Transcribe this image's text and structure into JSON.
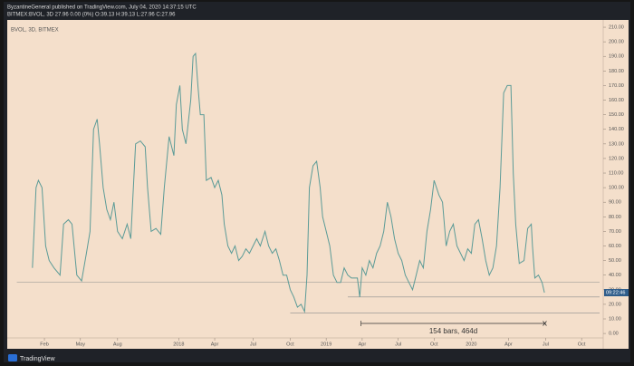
{
  "header": {
    "line1": "ByzantineGeneral published on TradingView.com, July 04, 2020 14:37:15 UTC",
    "line2": "BITMEX:BVOL, 3D  27.96  0.00 (0%)  O:39.13  H:39.13  L:27.96  C:27.96"
  },
  "chart_data": {
    "type": "line",
    "legend": "BVOL, 3D, BITMEX",
    "series": [
      {
        "name": "BVOL",
        "color": "#5b9b97",
        "x": [
          21,
          24,
          26,
          29,
          32,
          35,
          39,
          44,
          47,
          51,
          54,
          58,
          62,
          66,
          69,
          72,
          75,
          77,
          80,
          83,
          86,
          89,
          92,
          96,
          100,
          103,
          107,
          111,
          115,
          117,
          120,
          124,
          128,
          131,
          135,
          139,
          141,
          144,
          146,
          149,
          153,
          155,
          157,
          159,
          161,
          164,
          166,
          170,
          173,
          176,
          179,
          181,
          184,
          187,
          190,
          193,
          196,
          199,
          202,
          205,
          208,
          211,
          215,
          218,
          221,
          224,
          227,
          230,
          233,
          236,
          239,
          242,
          245,
          248,
          250,
          252,
          255,
          258,
          261,
          263,
          266,
          269,
          272,
          275,
          278,
          281,
          284,
          287,
          292,
          294,
          296,
          299,
          302,
          305,
          308,
          311,
          314,
          317,
          320,
          323,
          326,
          329,
          332,
          335,
          338,
          341,
          344,
          347,
          350,
          353,
          356,
          360,
          363,
          366,
          369,
          372,
          375,
          378,
          381,
          384,
          387,
          390,
          393,
          396,
          399,
          402,
          405,
          408,
          411,
          414,
          417,
          420,
          422,
          424,
          427,
          431,
          434,
          437,
          438,
          440,
          443,
          446,
          448
        ],
        "values": [
          45,
          100,
          105,
          100,
          60,
          50,
          45,
          40,
          75,
          78,
          75,
          40,
          36,
          55,
          70,
          140,
          147,
          130,
          100,
          85,
          78,
          90,
          70,
          65,
          75,
          65,
          130,
          132,
          128,
          100,
          70,
          72,
          68,
          100,
          135,
          122,
          157,
          170,
          140,
          130,
          160,
          190,
          192,
          170,
          150,
          150,
          105,
          107,
          100,
          105,
          95,
          75,
          60,
          55,
          60,
          50,
          53,
          58,
          55,
          60,
          65,
          60,
          70,
          60,
          55,
          58,
          50,
          40,
          40,
          30,
          25,
          18,
          20,
          15,
          40,
          100,
          115,
          118,
          100,
          80,
          70,
          60,
          40,
          35,
          35,
          45,
          40,
          38,
          38,
          25,
          45,
          40,
          50,
          45,
          55,
          60,
          70,
          90,
          80,
          65,
          55,
          50,
          40,
          35,
          30,
          40,
          50,
          45,
          70,
          85,
          105,
          95,
          90,
          60,
          70,
          75,
          60,
          55,
          50,
          58,
          55,
          75,
          78,
          65,
          50,
          40,
          45,
          60,
          100,
          165,
          170,
          170,
          110,
          75,
          48,
          50,
          72,
          75,
          60,
          38,
          40,
          35,
          28
        ]
      }
    ],
    "levels": [
      {
        "value": 35,
        "from": 8
      },
      {
        "value": 25,
        "from": 284
      },
      {
        "value": 14,
        "from": 236
      }
    ],
    "range_marker": {
      "from": 295,
      "to": 449,
      "label": "154 bars, 464d"
    },
    "last_label": "09:22:46",
    "xlim": [
      0,
      497
    ],
    "ylim": [
      -10.5,
      215
    ],
    "xticks": [
      {
        "value": 31,
        "label": "Feb"
      },
      {
        "value": 61,
        "label": "May"
      },
      {
        "value": 92,
        "label": "Aug"
      },
      {
        "value": 143,
        "label": "2018"
      },
      {
        "value": 173,
        "label": "Apr"
      },
      {
        "value": 205,
        "label": "Jul"
      },
      {
        "value": 236,
        "label": "Oct"
      },
      {
        "value": 266,
        "label": "2019"
      },
      {
        "value": 296,
        "label": "Apr"
      },
      {
        "value": 326,
        "label": "Jul"
      },
      {
        "value": 356,
        "label": "Oct"
      },
      {
        "value": 387,
        "label": "2020"
      },
      {
        "value": 418,
        "label": "Apr"
      },
      {
        "value": 449,
        "label": "Jul"
      },
      {
        "value": 479,
        "label": "Oct"
      }
    ],
    "yticks": [
      {
        "value": 0,
        "label": "0.00"
      },
      {
        "value": 10,
        "label": "10.00"
      },
      {
        "value": 20,
        "label": "20.00"
      },
      {
        "value": 30,
        "label": "30.00"
      },
      {
        "value": 40,
        "label": "40.00"
      },
      {
        "value": 50,
        "label": "50.00"
      },
      {
        "value": 60,
        "label": "60.00"
      },
      {
        "value": 70,
        "label": "70.00"
      },
      {
        "value": 80,
        "label": "80.00"
      },
      {
        "value": 90,
        "label": "90.00"
      },
      {
        "value": 100,
        "label": "100.00"
      },
      {
        "value": 110,
        "label": "110.00"
      },
      {
        "value": 120,
        "label": "120.00"
      },
      {
        "value": 130,
        "label": "130.00"
      },
      {
        "value": 140,
        "label": "140.00"
      },
      {
        "value": 150,
        "label": "150.00"
      },
      {
        "value": 160,
        "label": "160.00"
      },
      {
        "value": 170,
        "label": "170.00"
      },
      {
        "value": 180,
        "label": "180.00"
      },
      {
        "value": 190,
        "label": "190.00"
      },
      {
        "value": 200,
        "label": "200.00"
      },
      {
        "value": 210,
        "label": "210.00"
      }
    ]
  },
  "footer": {
    "brand": "TradingView"
  }
}
